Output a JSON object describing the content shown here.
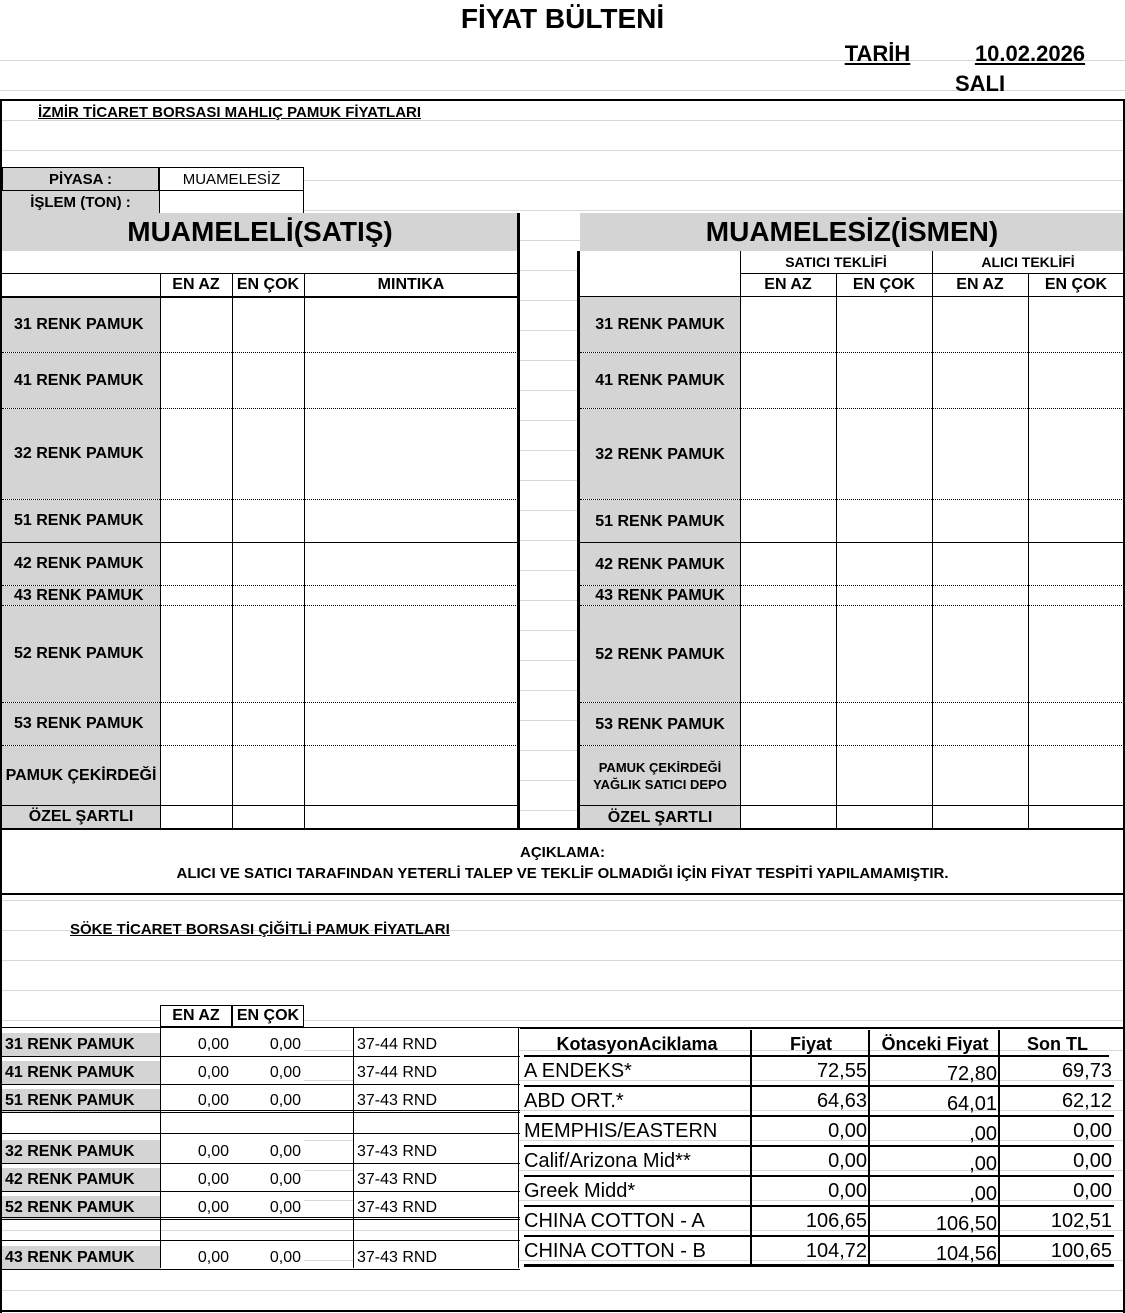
{
  "header": {
    "title": "FİYAT BÜLTENİ",
    "date_label": "TARİH",
    "date": "10.02.2026",
    "day": "SALI"
  },
  "izmir": {
    "section_title": "İZMİR  TİCARET BORSASI   MAHLIÇ  PAMUK FİYATLARI",
    "market_label": "PİYASA :",
    "market_value": "MUAMELESİZ",
    "volume_label": "İŞLEM (TON) :",
    "left_header": "MUAMELELİ(SATIŞ)",
    "right_header": "MUAMELESİZ(İSMEN)",
    "seller_offer": "SATICI TEKLİFİ",
    "buyer_offer": "ALICI TEKLİFİ",
    "col_min": "EN AZ",
    "col_max": "EN ÇOK",
    "col_region": "MINTIKA",
    "left_rows": [
      "31 RENK PAMUK",
      "41 RENK PAMUK",
      "32 RENK PAMUK",
      "51 RENK PAMUK",
      "42 RENK PAMUK",
      "43 RENK PAMUK",
      "52 RENK PAMUK",
      "53 RENK PAMUK",
      "PAMUK ÇEKİRDEĞİ",
      "ÖZEL ŞARTLI"
    ],
    "right_rows": [
      "31 RENK PAMUK",
      "41 RENK PAMUK",
      "32 RENK PAMUK",
      "51 RENK PAMUK",
      "42 RENK PAMUK",
      "43 RENK PAMUK",
      "52 RENK PAMUK",
      "53 RENK PAMUK",
      "PAMUK ÇEKİRDEĞİ\nYAĞLIK SATICI DEPO",
      "ÖZEL ŞARTLI"
    ]
  },
  "note": {
    "label": "AÇIKLAMA:",
    "text": "ALICI VE SATICI TARAFINDAN YETERLİ TALEP VE TEKLİF OLMADIĞI İÇİN FİYAT TESPİTİ YAPILAMAMIŞTIR."
  },
  "soke": {
    "section_title": "SÖKE  TİCARET BORSASI ÇİĞİTLİ PAMUK FİYATLARI",
    "col_min": "EN AZ",
    "col_max": "EN ÇOK",
    "rows": [
      [
        "31 RENK PAMUK",
        "0,00",
        "0,00",
        "37-44 RND"
      ],
      [
        "41 RENK PAMUK",
        "0,00",
        "0,00",
        "37-44 RND"
      ],
      [
        "51 RENK PAMUK",
        "0,00",
        "0,00",
        "37-43 RND"
      ],
      [
        "32 RENK PAMUK",
        "0,00",
        "0,00",
        "37-43 RND"
      ],
      [
        "42 RENK PAMUK",
        "0,00",
        "0,00",
        "37-43 RND"
      ],
      [
        "52 RENK PAMUK",
        "0,00",
        "0,00",
        "37-43 RND"
      ],
      [
        "43 RENK PAMUK",
        "0,00",
        "0,00",
        "37-43 RND"
      ]
    ]
  },
  "quotes": {
    "headers": [
      "KotasyonAciklama",
      "Fiyat",
      "Önceki Fiyat",
      "Son TL"
    ],
    "rows": [
      [
        "A ENDEKS*",
        "72,55",
        "72,80",
        "69,73"
      ],
      [
        "ABD ORT.*",
        "64,63",
        "64,01",
        "62,12"
      ],
      [
        "MEMPHIS/EASTERN",
        "0,00",
        ",00",
        "0,00"
      ],
      [
        "Calif/Arizona Mid**",
        "0,00",
        ",00",
        "0,00"
      ],
      [
        "Greek Midd*",
        "0,00",
        ",00",
        "0,00"
      ],
      [
        "CHINA COTTON - A",
        "106,65",
        "106,50",
        "102,51"
      ],
      [
        "CHINA COTTON - B",
        "104,72",
        "104,56",
        "100,65"
      ]
    ]
  }
}
